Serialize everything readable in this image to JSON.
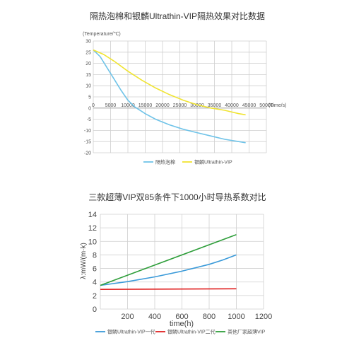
{
  "chart_data": [
    {
      "type": "line",
      "title": "隔热泡棉和银麟Ultrathin-VIP隔热效果对比数据",
      "ylabel": "(Temperature/℃)",
      "xlabel": "(Time/s)",
      "xlim": [
        0,
        50000
      ],
      "ylim": [
        -20,
        30
      ],
      "x_ticks": [
        0,
        5000,
        10000,
        15000,
        20000,
        25000,
        30000,
        35000,
        40000,
        45000,
        50000
      ],
      "y_ticks": [
        30,
        25,
        20,
        15,
        10,
        5,
        0,
        -5,
        -10,
        -15,
        -20
      ],
      "grid": true,
      "legend_position": "bottom",
      "series": [
        {
          "name": "隔热泡棉",
          "color": "#6fc3e8",
          "points": [
            [
              0,
              26
            ],
            [
              2000,
              23
            ],
            [
              4000,
              18
            ],
            [
              6000,
              13
            ],
            [
              8000,
              8
            ],
            [
              10000,
              3.5
            ],
            [
              12000,
              0.5
            ],
            [
              15000,
              -2.5
            ],
            [
              18000,
              -5
            ],
            [
              22000,
              -7.5
            ],
            [
              26000,
              -9.5
            ],
            [
              30000,
              -11
            ],
            [
              34000,
              -12.5
            ],
            [
              38000,
              -14
            ],
            [
              42000,
              -15
            ],
            [
              44000,
              -15.5
            ]
          ]
        },
        {
          "name": "银麟Ultrathin-VIP",
          "color": "#f0e431",
          "points": [
            [
              0,
              26
            ],
            [
              3000,
              24
            ],
            [
              6000,
              21
            ],
            [
              10000,
              16.5
            ],
            [
              14000,
              12.5
            ],
            [
              18000,
              9
            ],
            [
              22000,
              6
            ],
            [
              26000,
              3.5
            ],
            [
              30000,
              1.5
            ],
            [
              34000,
              0
            ],
            [
              38000,
              -1
            ],
            [
              42000,
              -2.5
            ],
            [
              44000,
              -3
            ]
          ]
        }
      ]
    },
    {
      "type": "line",
      "title": "三款超薄VIP双85条件下1000小时导热系数对比",
      "ylabel": "λ:mW/(m·k)",
      "xlabel": "time(h)",
      "xlim": [
        0,
        1200
      ],
      "ylim": [
        0,
        14
      ],
      "x_ticks": [
        200,
        400,
        600,
        800,
        1000,
        1200
      ],
      "y_ticks": [
        0,
        2,
        4,
        6,
        8,
        10,
        12,
        14
      ],
      "grid": true,
      "legend_position": "bottom",
      "series": [
        {
          "name": "银鳞Ultrathin-VIP一代",
          "color": "#3a9ad9",
          "points": [
            [
              0,
              3.5
            ],
            [
              200,
              4.05
            ],
            [
              400,
              4.75
            ],
            [
              600,
              5.6
            ],
            [
              800,
              6.6
            ],
            [
              900,
              7.25
            ],
            [
              1000,
              8.0
            ]
          ]
        },
        {
          "name": "银鳞Ultrathin-VIP二代",
          "color": "#e02020",
          "points": [
            [
              0,
              2.9
            ],
            [
              1000,
              3.0
            ]
          ]
        },
        {
          "name": "其他厂家超薄VIP",
          "color": "#2e9e3a",
          "points": [
            [
              0,
              3.5
            ],
            [
              1000,
              11.0
            ]
          ]
        }
      ]
    }
  ]
}
